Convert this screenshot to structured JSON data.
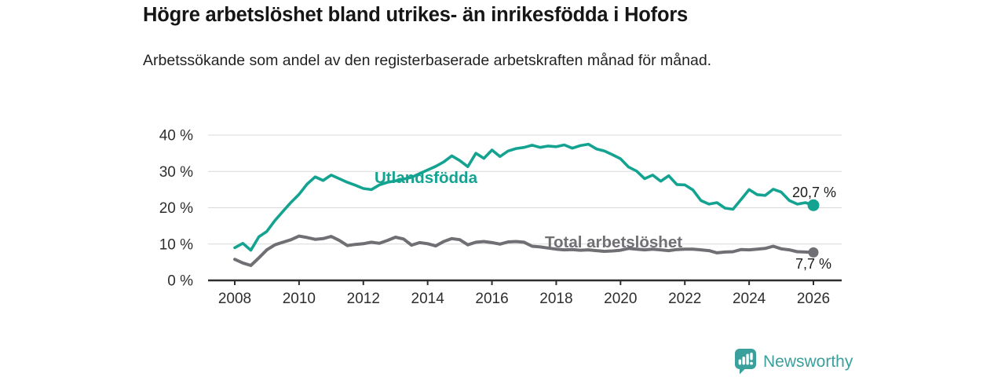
{
  "header": {
    "title": "Högre arbetslöshet bland utrikes- än inrikesfödda i Hofors",
    "subtitle": "Arbetssökande som andel av den registerbaserade arbetskraften månad för månad."
  },
  "chart_data": {
    "type": "line",
    "title": "Högre arbetslöshet bland utrikes- än inrikesfödda i Hofors",
    "subtitle": "Arbetssökande som andel av den registerbaserade arbetskraften månad för månad.",
    "unit": "%",
    "ylim": [
      0,
      40
    ],
    "xlim": [
      2007.2,
      2026.9
    ],
    "grid": "horizontal",
    "legend_position": "inline-labels",
    "yticks": [
      {
        "value": 0,
        "label": "0 %"
      },
      {
        "value": 10,
        "label": "10 %"
      },
      {
        "value": 20,
        "label": "20 %"
      },
      {
        "value": 30,
        "label": "30 %"
      },
      {
        "value": 40,
        "label": "40 %"
      }
    ],
    "xticks": [
      {
        "value": 2008,
        "label": "2008"
      },
      {
        "value": 2010,
        "label": "2010"
      },
      {
        "value": 2012,
        "label": "2012"
      },
      {
        "value": 2014,
        "label": "2014"
      },
      {
        "value": 2016,
        "label": "2016"
      },
      {
        "value": 2018,
        "label": "2018"
      },
      {
        "value": 2020,
        "label": "2020"
      },
      {
        "value": 2022,
        "label": "2022"
      },
      {
        "value": 2024,
        "label": "2024"
      },
      {
        "value": 2026,
        "label": "2026"
      }
    ],
    "x": [
      2008,
      2008.25,
      2008.5,
      2008.75,
      2009,
      2009.25,
      2009.5,
      2009.75,
      2010,
      2010.25,
      2010.5,
      2010.75,
      2011,
      2011.25,
      2011.5,
      2011.75,
      2012,
      2012.25,
      2012.5,
      2012.75,
      2013,
      2013.25,
      2013.5,
      2013.75,
      2014,
      2014.25,
      2014.5,
      2014.75,
      2015,
      2015.25,
      2015.5,
      2015.75,
      2016,
      2016.25,
      2016.5,
      2016.75,
      2017,
      2017.25,
      2017.5,
      2017.75,
      2018,
      2018.25,
      2018.5,
      2018.75,
      2019,
      2019.25,
      2019.5,
      2019.75,
      2020,
      2020.25,
      2020.5,
      2020.75,
      2021,
      2021.25,
      2021.5,
      2021.75,
      2022,
      2022.25,
      2022.5,
      2022.75,
      2023,
      2023.25,
      2023.5,
      2023.75,
      2024,
      2024.25,
      2024.5,
      2024.75,
      2025,
      2025.25,
      2025.5,
      2025.75,
      2026
    ],
    "series": [
      {
        "name": "Utlandsfödda",
        "color": "#14a390",
        "end_value": 20.7,
        "end_label": "20,7 %",
        "values": [
          9.0,
          10.2,
          8.3,
          12.0,
          13.5,
          16.5,
          19.0,
          21.5,
          23.7,
          26.5,
          28.5,
          27.5,
          29.0,
          28.0,
          27.0,
          26.2,
          25.3,
          25.0,
          26.3,
          27.0,
          27.4,
          27.9,
          28.4,
          29.4,
          30.4,
          31.4,
          32.6,
          34.3,
          33.0,
          31.3,
          35.0,
          33.6,
          35.9,
          34.1,
          35.6,
          36.3,
          36.6,
          37.2,
          36.6,
          37.0,
          36.8,
          37.3,
          36.4,
          37.1,
          37.5,
          36.2,
          35.6,
          34.6,
          33.5,
          31.2,
          30.1,
          28.0,
          29.0,
          27.3,
          28.8,
          26.4,
          26.3,
          24.9,
          22.0,
          21.0,
          21.4,
          19.9,
          19.6,
          22.3,
          25.0,
          23.6,
          23.4,
          25.1,
          24.3,
          22.0,
          21.0,
          21.4,
          20.7
        ]
      },
      {
        "name": "Total arbetslöshet",
        "color": "#6f6f74",
        "end_value": 7.7,
        "end_label": "7,7 %",
        "values": [
          5.8,
          4.8,
          4.1,
          6.2,
          8.4,
          9.8,
          10.5,
          11.2,
          12.2,
          11.8,
          11.3,
          11.5,
          12.1,
          11.0,
          9.6,
          9.9,
          10.1,
          10.5,
          10.2,
          11.0,
          11.9,
          11.4,
          9.7,
          10.4,
          10.1,
          9.5,
          10.7,
          11.5,
          11.2,
          9.8,
          10.5,
          10.7,
          10.4,
          10.0,
          10.6,
          10.7,
          10.5,
          9.4,
          9.2,
          8.9,
          8.6,
          8.4,
          8.5,
          8.3,
          8.4,
          8.2,
          8.0,
          8.1,
          8.3,
          8.8,
          8.6,
          8.4,
          8.6,
          8.4,
          8.2,
          8.5,
          8.6,
          8.6,
          8.4,
          8.2,
          7.6,
          7.8,
          7.9,
          8.5,
          8.4,
          8.6,
          8.8,
          9.4,
          8.7,
          8.4,
          7.9,
          7.8,
          7.7
        ]
      }
    ],
    "colors": {
      "grid": "#d9d9d9",
      "axis": "#2e2e2e",
      "tick_text": "#2e2e2e",
      "annotation_text": "#1a1a1a"
    }
  },
  "footer": {
    "brand": "Newsworthy",
    "brand_color": "#3aa09c"
  }
}
